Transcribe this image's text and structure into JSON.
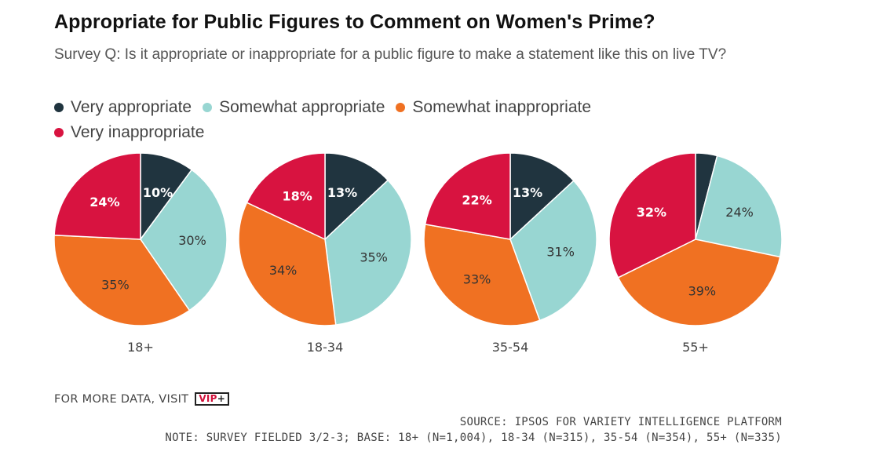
{
  "title": "Appropriate for Public Figures to Comment on Women's Prime?",
  "subtitle": "Survey Q: Is it appropriate or inappropriate for a public figure to make a statement like this on live TV?",
  "legend": [
    {
      "label": "Very appropriate",
      "color": "#20343f"
    },
    {
      "label": "Somewhat appropriate",
      "color": "#98d6d2"
    },
    {
      "label": "Somewhat inappropriate",
      "color": "#f07122"
    },
    {
      "label": "Very inappropriate",
      "color": "#d81340"
    }
  ],
  "footer": {
    "visit_text": "FOR MORE DATA, VISIT",
    "vip_text": "VIP",
    "vip_plus": "+",
    "source": "SOURCE: IPSOS FOR VARIETY INTELLIGENCE PLATFORM",
    "note": "NOTE: SURVEY FIELDED 3/2-3; BASE: 18+ (N=1,004), 18-34 (N=315), 35-54 (N=354), 55+ (N=335)"
  },
  "chart_data": {
    "type": "pie",
    "categories": [
      "Very appropriate",
      "Somewhat appropriate",
      "Somewhat inappropriate",
      "Very inappropriate"
    ],
    "series": [
      {
        "name": "18+",
        "values": [
          10,
          30,
          35,
          24
        ],
        "labels": [
          "10%",
          "30%",
          "35%",
          "24%"
        ]
      },
      {
        "name": "18-34",
        "values": [
          13,
          35,
          34,
          18
        ],
        "labels": [
          "13%",
          "35%",
          "34%",
          "18%"
        ]
      },
      {
        "name": "35-54",
        "values": [
          13,
          31,
          33,
          22
        ],
        "labels": [
          "13%",
          "31%",
          "33%",
          "22%"
        ]
      },
      {
        "name": "55+",
        "values": [
          4,
          24,
          39,
          32
        ],
        "labels": [
          "",
          "24%",
          "39%",
          "32%"
        ]
      }
    ]
  }
}
